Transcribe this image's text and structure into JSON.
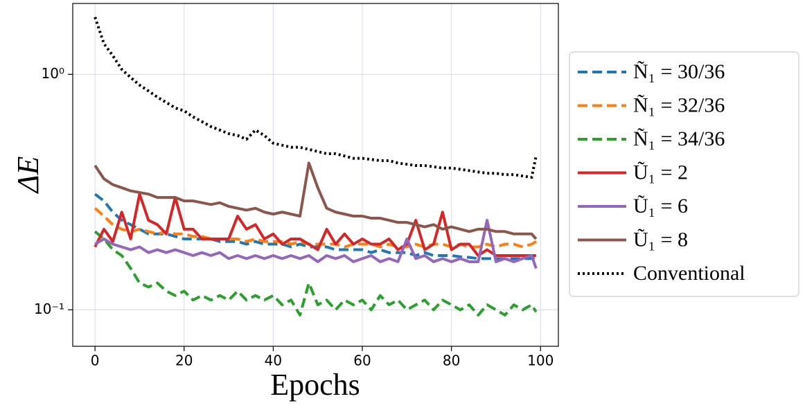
{
  "chart_data": {
    "type": "line",
    "xlabel": "Epochs",
    "ylabel": "ΔE",
    "yscale": "log",
    "grid": true,
    "legend": "right",
    "xlim": [
      -5,
      104
    ],
    "ylim": [
      0.07,
      2.0
    ],
    "xticks": [
      0,
      20,
      40,
      60,
      80,
      100
    ],
    "yticks": [
      {
        "value": 0.1,
        "label": "10⁻¹"
      },
      {
        "value": 1,
        "label": "10⁰"
      }
    ],
    "x": [
      0,
      2,
      4,
      6,
      8,
      10,
      12,
      14,
      16,
      18,
      20,
      22,
      24,
      26,
      28,
      30,
      32,
      34,
      36,
      38,
      40,
      42,
      44,
      46,
      48,
      50,
      52,
      54,
      56,
      58,
      60,
      62,
      64,
      66,
      68,
      70,
      72,
      74,
      76,
      78,
      80,
      82,
      84,
      86,
      88,
      90,
      92,
      94,
      96,
      98,
      99
    ],
    "series": [
      {
        "name": "Ñ₁ = 30/36",
        "color": "#1f77b4",
        "linestyle": "dashed",
        "values": [
          0.31,
          0.29,
          0.26,
          0.24,
          0.23,
          0.22,
          0.21,
          0.21,
          0.21,
          0.205,
          0.2,
          0.2,
          0.2,
          0.2,
          0.195,
          0.195,
          0.195,
          0.19,
          0.195,
          0.19,
          0.19,
          0.19,
          0.185,
          0.19,
          0.185,
          0.185,
          0.185,
          0.18,
          0.18,
          0.18,
          0.18,
          0.175,
          0.18,
          0.175,
          0.175,
          0.175,
          0.17,
          0.175,
          0.17,
          0.17,
          0.17,
          0.168,
          0.167,
          0.165,
          0.165,
          0.165,
          0.165,
          0.165,
          0.165,
          0.165,
          0.165
        ]
      },
      {
        "name": "Ñ₁ = 32/36",
        "color": "#ff7f0e",
        "linestyle": "dashed",
        "values": [
          0.27,
          0.25,
          0.23,
          0.22,
          0.215,
          0.22,
          0.215,
          0.21,
          0.215,
          0.21,
          0.21,
          0.205,
          0.205,
          0.2,
          0.2,
          0.2,
          0.2,
          0.195,
          0.2,
          0.195,
          0.195,
          0.195,
          0.19,
          0.195,
          0.19,
          0.19,
          0.19,
          0.19,
          0.185,
          0.19,
          0.19,
          0.19,
          0.185,
          0.19,
          0.185,
          0.185,
          0.19,
          0.185,
          0.19,
          0.19,
          0.185,
          0.19,
          0.185,
          0.185,
          0.19,
          0.185,
          0.19,
          0.19,
          0.185,
          0.19,
          0.195
        ]
      },
      {
        "name": "Ñ₁ = 34/36",
        "color": "#2ca02c",
        "linestyle": "dashed",
        "values": [
          0.215,
          0.2,
          0.18,
          0.17,
          0.15,
          0.13,
          0.125,
          0.13,
          0.12,
          0.115,
          0.12,
          0.11,
          0.115,
          0.11,
          0.115,
          0.11,
          0.12,
          0.11,
          0.115,
          0.11,
          0.115,
          0.105,
          0.11,
          0.095,
          0.13,
          0.105,
          0.11,
          0.1,
          0.11,
          0.105,
          0.11,
          0.1,
          0.115,
          0.105,
          0.11,
          0.1,
          0.105,
          0.11,
          0.1,
          0.11,
          0.105,
          0.1,
          0.105,
          0.095,
          0.105,
          0.1,
          0.095,
          0.105,
          0.1,
          0.105,
          0.098
        ]
      },
      {
        "name": "Ũ₁ = 2",
        "color": "#d62728",
        "linestyle": "solid",
        "values": [
          0.185,
          0.22,
          0.195,
          0.26,
          0.2,
          0.31,
          0.24,
          0.23,
          0.21,
          0.3,
          0.22,
          0.22,
          0.2,
          0.2,
          0.2,
          0.2,
          0.25,
          0.22,
          0.23,
          0.2,
          0.21,
          0.19,
          0.2,
          0.2,
          0.19,
          0.18,
          0.22,
          0.19,
          0.21,
          0.19,
          0.2,
          0.19,
          0.19,
          0.2,
          0.18,
          0.19,
          0.24,
          0.18,
          0.19,
          0.26,
          0.18,
          0.19,
          0.19,
          0.17,
          0.18,
          0.17,
          0.17,
          0.17,
          0.17,
          0.17,
          0.17
        ]
      },
      {
        "name": "Ũ₁ = 6",
        "color": "#9467bd",
        "linestyle": "solid",
        "values": [
          0.19,
          0.2,
          0.19,
          0.185,
          0.18,
          0.185,
          0.175,
          0.18,
          0.175,
          0.18,
          0.175,
          0.17,
          0.175,
          0.17,
          0.175,
          0.165,
          0.17,
          0.165,
          0.17,
          0.165,
          0.17,
          0.165,
          0.17,
          0.165,
          0.17,
          0.16,
          0.17,
          0.165,
          0.17,
          0.16,
          0.165,
          0.17,
          0.16,
          0.165,
          0.16,
          0.2,
          0.165,
          0.17,
          0.16,
          0.165,
          0.16,
          0.165,
          0.16,
          0.16,
          0.24,
          0.16,
          0.165,
          0.16,
          0.165,
          0.17,
          0.15
        ]
      },
      {
        "name": "Ũ₁ = 8",
        "color": "#8c564b",
        "linestyle": "solid",
        "values": [
          0.41,
          0.36,
          0.34,
          0.33,
          0.32,
          0.315,
          0.31,
          0.3,
          0.3,
          0.3,
          0.29,
          0.29,
          0.285,
          0.28,
          0.285,
          0.275,
          0.27,
          0.265,
          0.27,
          0.26,
          0.255,
          0.26,
          0.255,
          0.25,
          0.42,
          0.33,
          0.27,
          0.26,
          0.255,
          0.25,
          0.25,
          0.245,
          0.245,
          0.24,
          0.235,
          0.235,
          0.23,
          0.225,
          0.23,
          0.22,
          0.225,
          0.22,
          0.215,
          0.22,
          0.22,
          0.215,
          0.215,
          0.21,
          0.21,
          0.21,
          0.2
        ]
      },
      {
        "name": "Conventional",
        "color": "#000000",
        "linestyle": "dotted",
        "values": [
          1.75,
          1.35,
          1.2,
          1.05,
          0.97,
          0.9,
          0.85,
          0.8,
          0.76,
          0.72,
          0.7,
          0.66,
          0.63,
          0.6,
          0.58,
          0.56,
          0.55,
          0.53,
          0.58,
          0.55,
          0.51,
          0.5,
          0.49,
          0.49,
          0.48,
          0.47,
          0.46,
          0.46,
          0.45,
          0.44,
          0.44,
          0.435,
          0.43,
          0.43,
          0.42,
          0.415,
          0.41,
          0.41,
          0.405,
          0.4,
          0.4,
          0.395,
          0.39,
          0.385,
          0.38,
          0.38,
          0.375,
          0.375,
          0.37,
          0.365,
          0.45
        ]
      }
    ]
  }
}
